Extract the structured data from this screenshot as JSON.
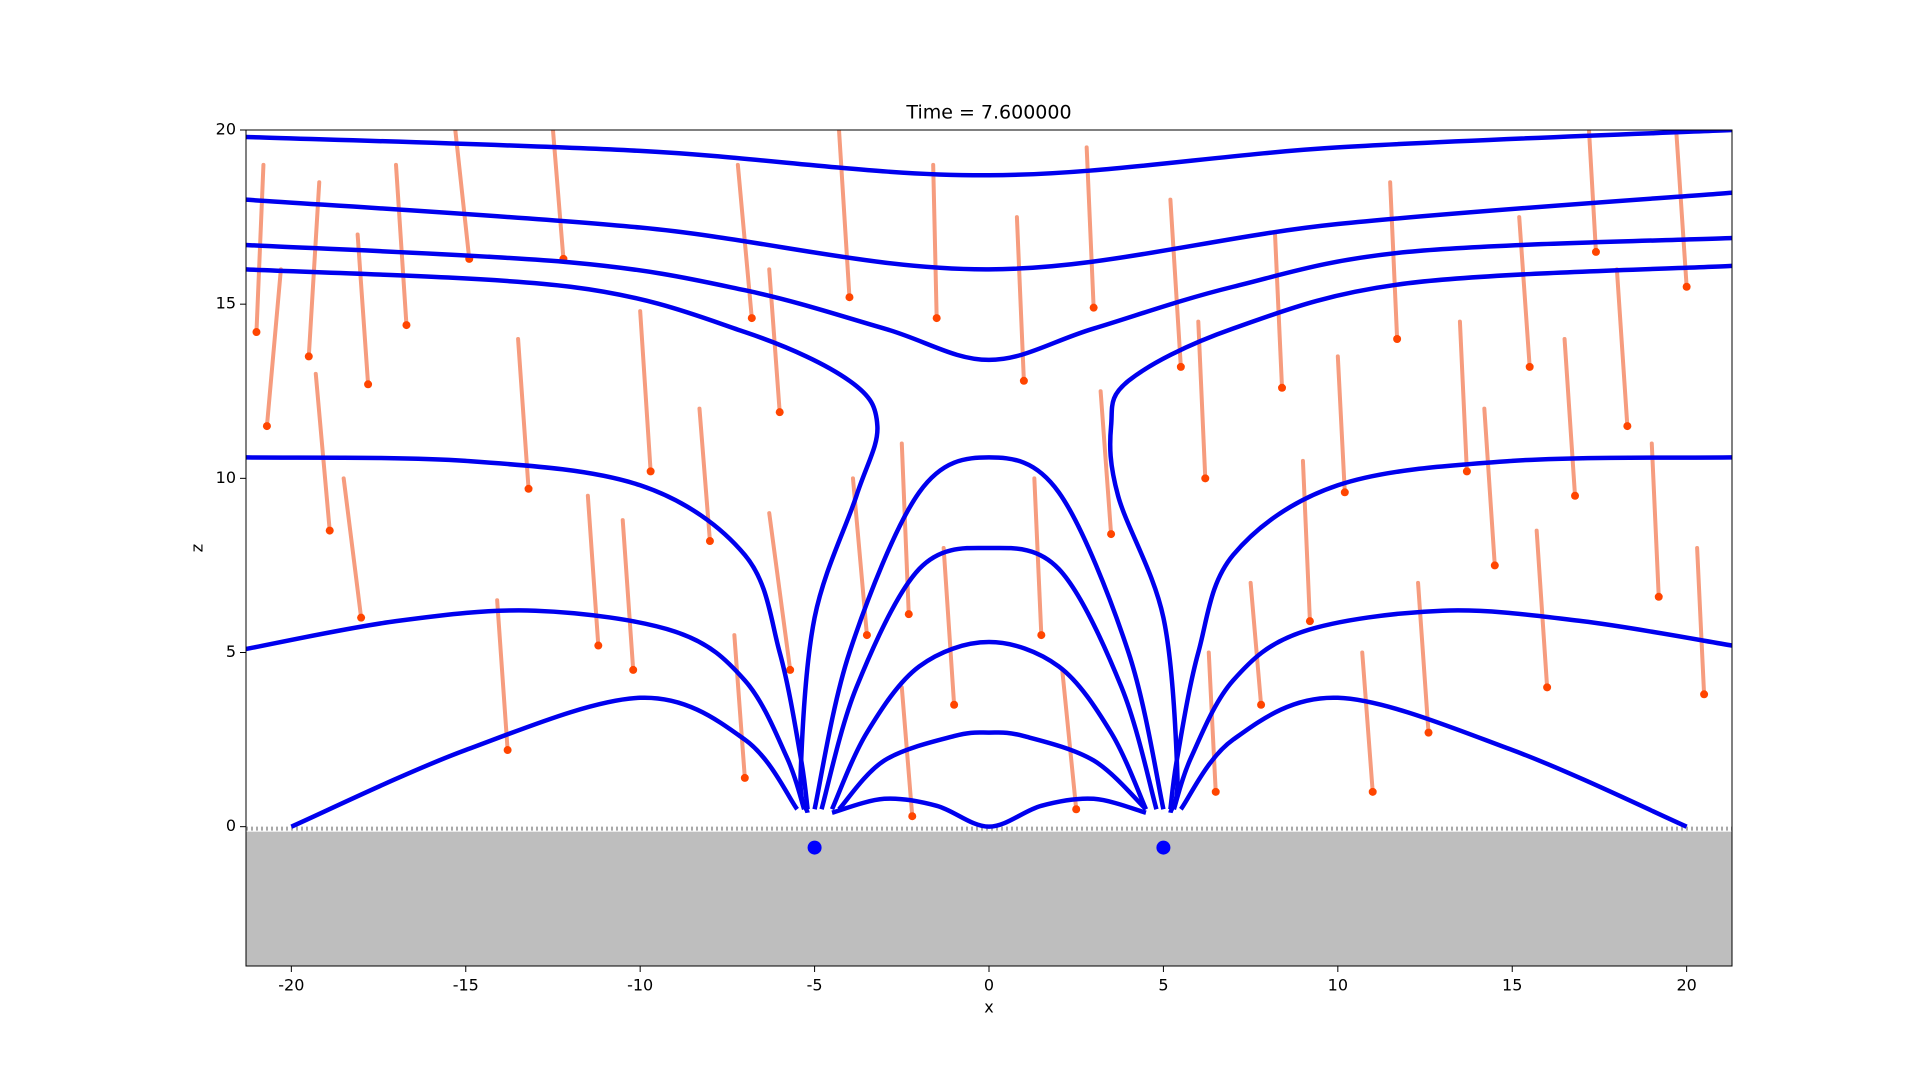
{
  "chart_data": {
    "type": "line",
    "title": "Time = 7.600000",
    "xlabel": "x",
    "ylabel": "z",
    "xlim": [
      -21.3,
      21.3
    ],
    "ylim": [
      -4,
      20
    ],
    "xticks": [
      -20,
      -15,
      -10,
      -5,
      0,
      5,
      10,
      15,
      20
    ],
    "yticks": [
      0,
      5,
      10,
      15,
      20
    ],
    "ground_color": "#bebebe",
    "field_line_color": "#0000ee",
    "field_lines": [
      {
        "x": [
          -21.3,
          -10,
          0,
          10,
          21.3
        ],
        "values": [
          19.8,
          19.4,
          18.7,
          19.5,
          20
        ]
      },
      {
        "x": [
          -21.3,
          -10,
          0,
          10,
          21.3
        ],
        "values": [
          18,
          17.2,
          16,
          17.3,
          18.2
        ]
      },
      {
        "x": [
          -21.3,
          -12,
          -7,
          -3,
          0,
          3,
          7,
          12,
          21.3
        ],
        "values": [
          16.7,
          16.2,
          15.4,
          14.3,
          13.4,
          14.3,
          15.5,
          16.5,
          16.9
        ]
      },
      {
        "x": [
          -21.3,
          -12,
          -7,
          -4,
          -3.2,
          -3.8,
          -5,
          -5.4,
          -5.2
        ],
        "values": [
          16.0,
          15.5,
          14.2,
          12.8,
          11.5,
          9.5,
          6,
          1.5,
          0.4
        ]
      },
      {
        "x": [
          21.3,
          12,
          7,
          4,
          3.5,
          3.7,
          5,
          5.4,
          5.2
        ],
        "values": [
          16.1,
          15.6,
          14.3,
          12.8,
          11.5,
          9.5,
          6,
          1.5,
          0.4
        ]
      },
      {
        "x": [
          -21.3,
          -15,
          -10,
          -7,
          -6,
          -5.4,
          -5.2
        ],
        "values": [
          10.6,
          10.5,
          9.8,
          7.8,
          5,
          2,
          0.5
        ]
      },
      {
        "x": [
          21.3,
          15,
          10,
          7,
          6,
          5.4,
          5.2
        ],
        "values": [
          10.6,
          10.5,
          9.8,
          7.8,
          5,
          2,
          0.5
        ]
      },
      {
        "x": [
          -21.3,
          -17,
          -13,
          -9,
          -7,
          -5.8,
          -5.3
        ],
        "values": [
          5.1,
          5.9,
          6.2,
          5.6,
          4.2,
          2,
          0.5
        ]
      },
      {
        "x": [
          21.3,
          17,
          13,
          9,
          7,
          5.8,
          5.3
        ],
        "values": [
          5.2,
          5.9,
          6.2,
          5.6,
          4.2,
          2,
          0.5
        ]
      },
      {
        "x": [
          -20,
          -15,
          -10,
          -7,
          -5.5
        ],
        "values": [
          0,
          2.2,
          3.7,
          2.5,
          0.5
        ]
      },
      {
        "x": [
          20,
          15,
          10,
          7,
          5.5
        ],
        "values": [
          0,
          2.2,
          3.7,
          2.5,
          0.5
        ]
      },
      {
        "x": [
          -5,
          -4,
          -2,
          0,
          2,
          4,
          5
        ],
        "values": [
          0.5,
          5,
          9.6,
          10.6,
          9.6,
          5,
          0.5
        ]
      },
      {
        "x": [
          -4.8,
          -3.8,
          -2,
          0,
          2,
          3.8,
          4.8
        ],
        "values": [
          0.5,
          4,
          7.4,
          8,
          7.4,
          4,
          0.5
        ]
      },
      {
        "x": [
          -4.5,
          -3.5,
          -2,
          0,
          2,
          3.5,
          4.5
        ],
        "values": [
          0.5,
          2.7,
          4.6,
          5.3,
          4.6,
          2.7,
          0.5
        ]
      },
      {
        "x": [
          -4.3,
          -3,
          -1,
          0,
          1,
          3,
          4.5
        ],
        "values": [
          0.5,
          1.9,
          2.6,
          2.7,
          2.6,
          1.9,
          0.5
        ]
      },
      {
        "x": [
          -4.5,
          -3,
          -1.5,
          0,
          1.5,
          3,
          4.5
        ],
        "values": [
          0.4,
          0.8,
          0.6,
          0,
          0.6,
          0.8,
          0.4
        ]
      }
    ],
    "particles": {
      "head_color": "#ff4500",
      "trail_color": "#f4845f",
      "x": [
        -21,
        -20.7,
        -19.5,
        -18.9,
        -18,
        -16.7,
        -14.9,
        -13.2,
        -12.2,
        -11.2,
        -9.7,
        -8,
        -6.8,
        -6,
        -5.7,
        -4,
        -3.5,
        -2.3,
        -1.5,
        -1,
        1,
        1.5,
        3,
        3.5,
        5.5,
        6.2,
        7.8,
        8.4,
        9.2,
        10.2,
        11.7,
        12.6,
        13.7,
        14.5,
        15.5,
        16,
        17.4,
        18.3,
        19.2,
        20,
        20.5,
        -13.8,
        -17.8,
        6.5,
        -7,
        2.5,
        -2.2,
        11,
        -10.2,
        16.8
      ],
      "z": [
        14.2,
        11.5,
        13.5,
        8.5,
        6,
        14.4,
        16.3,
        9.7,
        16.3,
        5.2,
        10.2,
        8.2,
        14.6,
        11.9,
        4.5,
        15.2,
        5.5,
        6.1,
        14.6,
        3.5,
        12.8,
        5.5,
        14.9,
        8.4,
        13.2,
        10,
        3.5,
        12.6,
        5.9,
        9.6,
        14,
        2.7,
        10.2,
        7.5,
        13.2,
        4,
        16.5,
        11.5,
        6.6,
        15.5,
        3.8,
        2.2,
        12.7,
        1,
        1.4,
        0.5,
        0.3,
        1,
        4.5,
        9.5
      ],
      "tail_x": [
        -20.8,
        -20.3,
        -19.2,
        -19.3,
        -18.5,
        -17,
        -15.3,
        -13.5,
        -12.5,
        -11.5,
        -10,
        -8.3,
        -7.2,
        -6.3,
        -6.3,
        -4.3,
        -3.9,
        -2.5,
        -1.6,
        -1.3,
        0.8,
        1.3,
        2.8,
        3.2,
        5.2,
        6,
        7.5,
        8.2,
        9,
        10,
        11.5,
        12.3,
        13.5,
        14.2,
        15.2,
        15.7,
        17.2,
        18,
        19,
        19.7,
        20.3,
        -14.1,
        -18.1,
        6.3,
        -7.3,
        2.1,
        -2.5,
        10.7,
        -10.5,
        16.5
      ],
      "tail_z": [
        19,
        16,
        18.5,
        13,
        10,
        19,
        20,
        14,
        20,
        9.5,
        14.8,
        12,
        19,
        16,
        9,
        20,
        10,
        11,
        19,
        8,
        17.5,
        10,
        19.5,
        12.5,
        18,
        14.5,
        7,
        17,
        10.5,
        13.5,
        18.5,
        7,
        14.5,
        12,
        17.5,
        8.5,
        20,
        16,
        11,
        20,
        8,
        6.5,
        17,
        5,
        5.5,
        4.5,
        4,
        5,
        8.8,
        14
      ]
    },
    "sources": {
      "color": "#0000ff",
      "x": [
        -5,
        5
      ],
      "z": [
        -0.6,
        -0.6
      ]
    }
  }
}
